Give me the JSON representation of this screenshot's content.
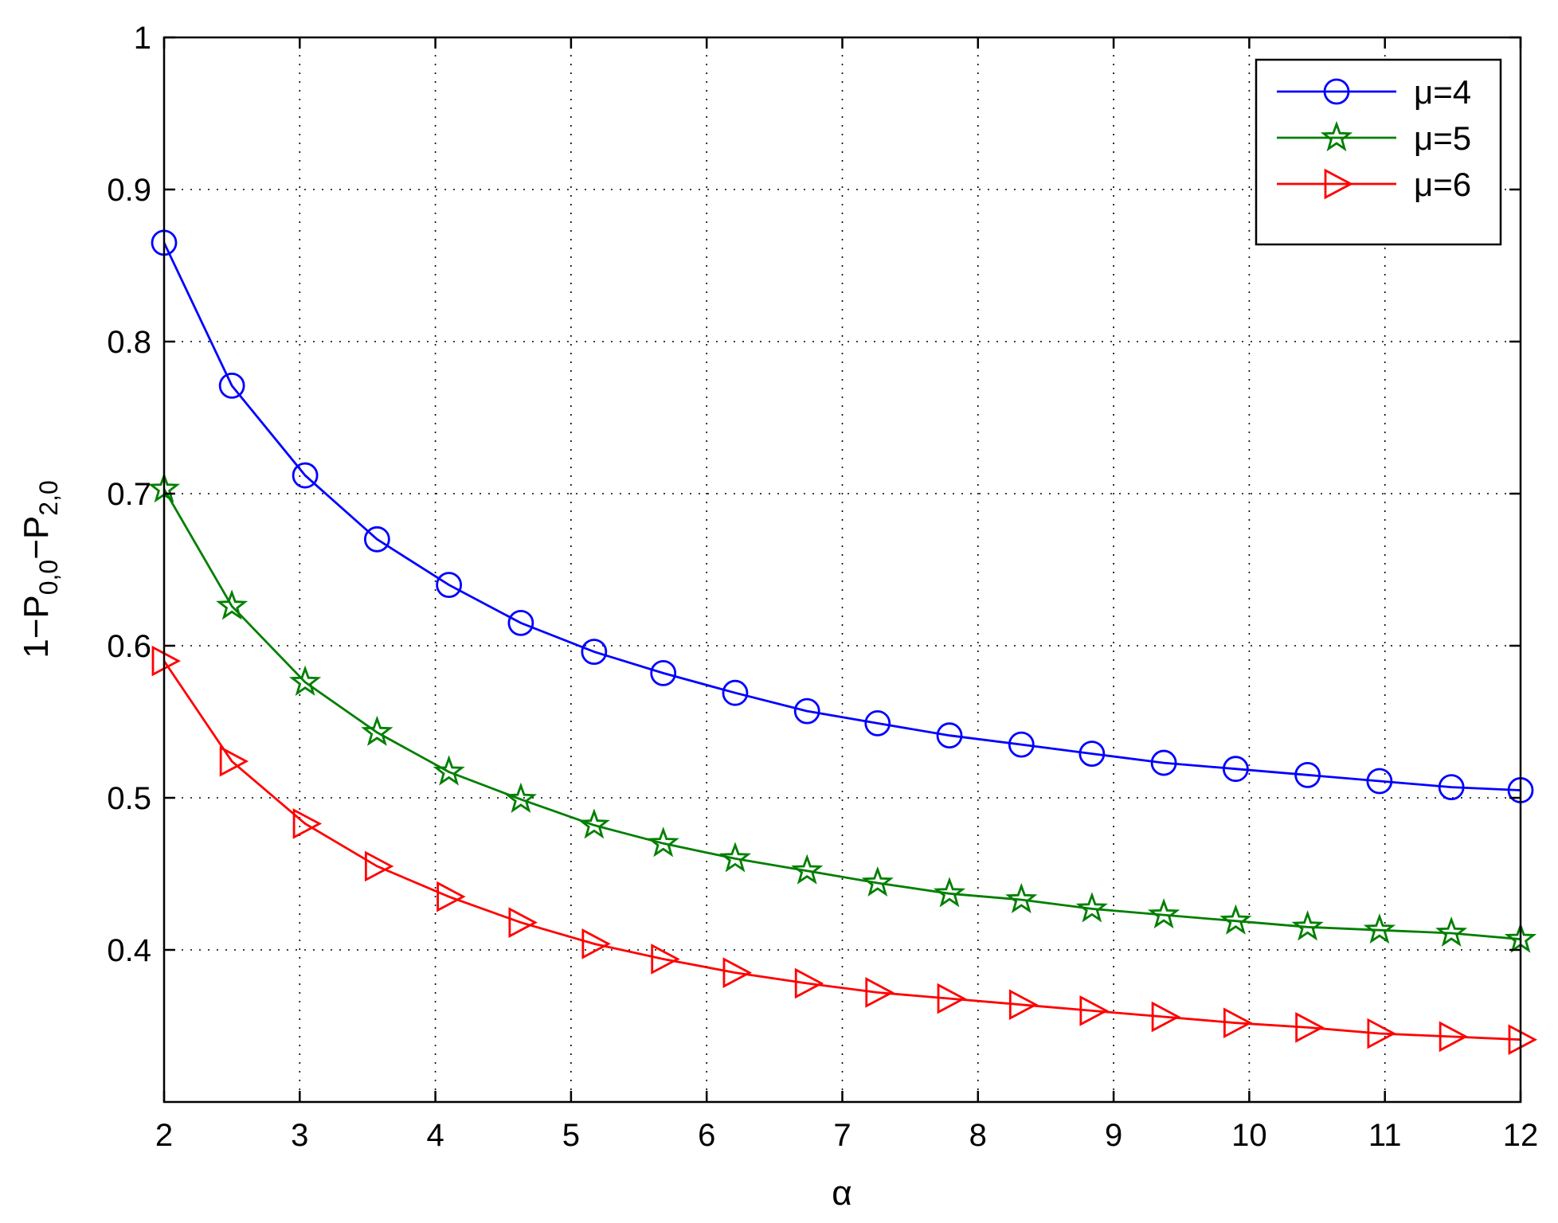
{
  "chart_data": {
    "type": "line",
    "xlabel": "α",
    "ylabel": {
      "base": "1−P",
      "sub1": "0,0",
      "mid": "−P",
      "sub2": "2,0"
    },
    "xlim": [
      2,
      12
    ],
    "ylim": [
      0.3,
      1.0
    ],
    "xticks": [
      2,
      3,
      4,
      5,
      6,
      7,
      8,
      9,
      10,
      11,
      12
    ],
    "yticks": [
      0.4,
      0.5,
      0.6,
      0.7,
      0.8,
      0.9,
      1
    ],
    "ytick_labels": [
      "0.4",
      "0.5",
      "0.6",
      "0.7",
      "0.8",
      "0.9",
      "1"
    ],
    "grid": true,
    "legend_position": "top-right",
    "x": [
      2,
      2.5,
      3.04,
      3.57,
      4.1,
      4.63,
      5.17,
      5.68,
      6.21,
      6.74,
      7.26,
      7.79,
      8.32,
      8.84,
      9.37,
      9.9,
      10.43,
      10.96,
      11.49,
      12
    ],
    "series": [
      {
        "name": "μ=4",
        "color": "#0000ff",
        "marker": "circle",
        "values": [
          0.865,
          0.771,
          0.712,
          0.67,
          0.64,
          0.615,
          0.596,
          0.582,
          0.569,
          0.557,
          0.549,
          0.541,
          0.535,
          0.529,
          0.523,
          0.519,
          0.515,
          0.511,
          0.507,
          0.505
        ]
      },
      {
        "name": "μ=5",
        "color": "#007f00",
        "marker": "star",
        "values": [
          0.703,
          0.626,
          0.576,
          0.543,
          0.517,
          0.499,
          0.482,
          0.47,
          0.46,
          0.452,
          0.444,
          0.437,
          0.433,
          0.427,
          0.423,
          0.419,
          0.415,
          0.413,
          0.411,
          0.407
        ]
      },
      {
        "name": "μ=6",
        "color": "#ff0000",
        "marker": "triangle-right",
        "values": [
          0.59,
          0.524,
          0.483,
          0.455,
          0.435,
          0.418,
          0.404,
          0.394,
          0.385,
          0.378,
          0.372,
          0.368,
          0.364,
          0.36,
          0.356,
          0.352,
          0.349,
          0.345,
          0.343,
          0.341
        ]
      }
    ]
  }
}
